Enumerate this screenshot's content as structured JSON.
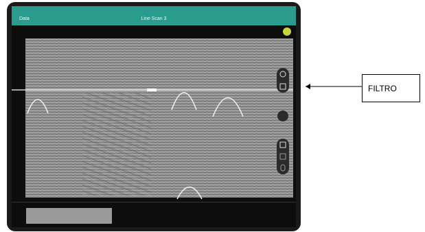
{
  "header": {
    "back": "Data",
    "title": "Line Scan 3"
  },
  "callout": {
    "label": "FILTRO"
  }
}
